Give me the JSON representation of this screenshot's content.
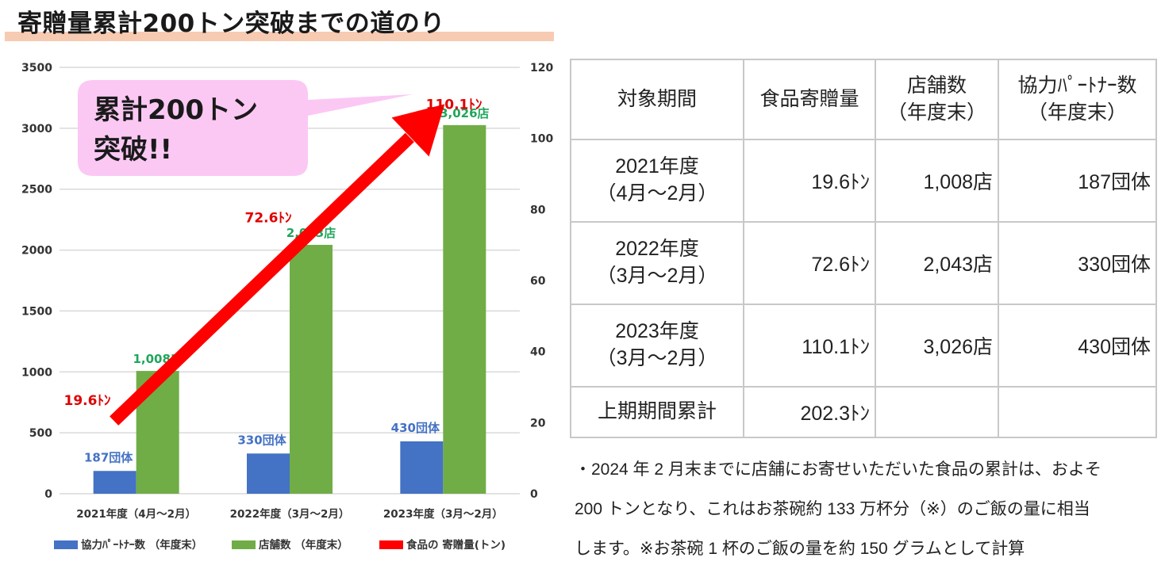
{
  "title": "寄贈量累計200トン突破までの道のり",
  "chart_data": {
    "type": "bar",
    "categories": [
      "2021年度（4月～2月）",
      "2022年度（3月～2月）",
      "2023年度（3月～2月）"
    ],
    "series": [
      {
        "name": "協力ﾊﾟｰﾄﾅｰ数 （年度末）",
        "type": "bar",
        "axis": "left",
        "color": "#4472c4",
        "values": [
          187,
          330,
          430
        ],
        "labels": [
          "187団体",
          "330団体",
          "430団体"
        ]
      },
      {
        "name": "店舗数 （年度末）",
        "type": "bar",
        "axis": "left",
        "color": "#70ad47",
        "values": [
          1008,
          2043,
          3026
        ],
        "labels": [
          "1,008店",
          "2,043店",
          "3,026店"
        ]
      },
      {
        "name": "食品の 寄贈量(トン)",
        "type": "line",
        "axis": "right",
        "color": "#ff0000",
        "values": [
          19.6,
          72.6,
          110.1
        ],
        "labels": [
          "19.6ﾄﾝ",
          "72.6ﾄﾝ",
          "110.1ﾄﾝ"
        ]
      }
    ],
    "y_left": {
      "min": 0,
      "max": 3500,
      "ticks": [
        0,
        500,
        1000,
        1500,
        2000,
        2500,
        3000,
        3500
      ]
    },
    "y_right": {
      "min": 0,
      "max": 120,
      "ticks": [
        0,
        20,
        40,
        60,
        80,
        100,
        120
      ]
    },
    "grid": true,
    "legend_position": "bottom",
    "annotation": {
      "lines": [
        "累計200トン",
        "突破!!"
      ],
      "fill": "#fbc8f4"
    }
  },
  "table": {
    "headers": [
      "対象期間",
      "食品寄贈量",
      "店舗数\n（年度末）",
      "協力ﾊﾟｰﾄﾅｰ数\n（年度末）"
    ],
    "rows": [
      [
        "2021年度\n（4月～2月）",
        "19.6ﾄﾝ",
        "1,008店",
        "187団体"
      ],
      [
        "2022年度\n（3月～2月）",
        "72.6ﾄﾝ",
        "2,043店",
        "330団体"
      ],
      [
        "2023年度\n（3月～2月）",
        "110.1ﾄﾝ",
        "3,026店",
        "430団体"
      ],
      [
        "上期期間累計",
        "202.3ﾄﾝ",
        "",
        ""
      ]
    ]
  },
  "notes": [
    "・2024 年 2 月末までに店舗にお寄せいただいた食品の累計は、およそ",
    "200 トンとなり、これはお茶碗約 133 万杯分（※）のご飯の量に相当",
    "します。※お茶碗 1 杯のご飯の量を約 150 グラムとして計算"
  ]
}
